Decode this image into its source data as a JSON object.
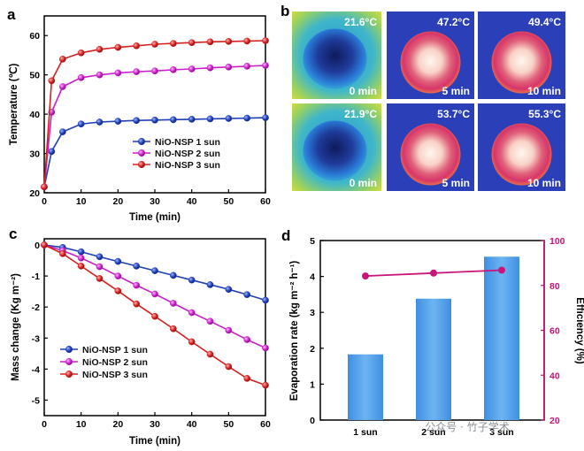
{
  "panel_letters": {
    "a": "a",
    "b": "b",
    "c": "c",
    "d": "d"
  },
  "colors": {
    "sun1": "#1f3fb5",
    "sun2": "#c81fc8",
    "sun3": "#d42020",
    "bar": "#4d9be6",
    "efficiency": "#c8157a",
    "right_axis": "#c8157a"
  },
  "chart_data": [
    {
      "panel": "a",
      "type": "line",
      "xlabel": "Time (min)",
      "ylabel": "Temperature (℃)",
      "xlim": [
        0,
        60
      ],
      "ylim": [
        20,
        65
      ],
      "xticks": [
        0,
        10,
        20,
        30,
        40,
        50,
        60
      ],
      "yticks": [
        20,
        30,
        40,
        50,
        60
      ],
      "series": [
        {
          "name": "NiO-NSP 1 sun",
          "x": [
            0,
            2,
            5,
            10,
            15,
            20,
            25,
            30,
            35,
            40,
            45,
            50,
            55,
            60
          ],
          "y": [
            21.5,
            30.5,
            35.5,
            37.5,
            38.0,
            38.2,
            38.4,
            38.5,
            38.6,
            38.7,
            38.8,
            38.9,
            39.0,
            39.1
          ]
        },
        {
          "name": "NiO-NSP 2 sun",
          "x": [
            0,
            2,
            5,
            10,
            15,
            20,
            25,
            30,
            35,
            40,
            45,
            50,
            55,
            60
          ],
          "y": [
            21.5,
            40.5,
            47.0,
            49.3,
            50.0,
            50.5,
            50.8,
            51.0,
            51.3,
            51.5,
            51.8,
            52.0,
            52.2,
            52.4
          ]
        },
        {
          "name": "NiO-NSP 3 sun",
          "x": [
            0,
            2,
            5,
            10,
            15,
            20,
            25,
            30,
            35,
            40,
            45,
            50,
            55,
            60
          ],
          "y": [
            21.5,
            48.5,
            54.0,
            55.6,
            56.5,
            57.0,
            57.4,
            57.8,
            58.0,
            58.2,
            58.4,
            58.5,
            58.6,
            58.7
          ]
        }
      ],
      "legend": [
        "NiO-NSP 1 sun",
        "NiO-NSP 2 sun",
        "NiO-NSP 3 sun"
      ]
    },
    {
      "panel": "c",
      "type": "line",
      "xlabel": "Time (min)",
      "ylabel": "Mass change (Kg m⁻²)",
      "xlim": [
        0,
        60
      ],
      "ylim": [
        -5.5,
        0.2
      ],
      "xticks": [
        0,
        10,
        20,
        30,
        40,
        50,
        60
      ],
      "yticks": [
        0,
        -1,
        -2,
        -3,
        -4,
        -5
      ],
      "series": [
        {
          "name": "NiO-NSP 1 sun",
          "x": [
            0,
            5,
            10,
            15,
            20,
            25,
            30,
            35,
            40,
            45,
            50,
            55,
            60
          ],
          "y": [
            0,
            -0.08,
            -0.22,
            -0.38,
            -0.53,
            -0.68,
            -0.83,
            -0.98,
            -1.13,
            -1.28,
            -1.43,
            -1.6,
            -1.78
          ]
        },
        {
          "name": "NiO-NSP 2 sun",
          "x": [
            0,
            5,
            10,
            15,
            20,
            25,
            30,
            35,
            40,
            45,
            50,
            55,
            60
          ],
          "y": [
            0,
            -0.18,
            -0.42,
            -0.7,
            -1.0,
            -1.3,
            -1.58,
            -1.88,
            -2.18,
            -2.46,
            -2.75,
            -3.05,
            -3.32
          ]
        },
        {
          "name": "NiO-NSP 3 sun",
          "x": [
            0,
            5,
            10,
            15,
            20,
            25,
            30,
            35,
            40,
            45,
            50,
            55,
            60
          ],
          "y": [
            0,
            -0.28,
            -0.68,
            -1.08,
            -1.48,
            -1.9,
            -2.3,
            -2.7,
            -3.12,
            -3.52,
            -3.92,
            -4.3,
            -4.52
          ]
        }
      ],
      "legend": [
        "NiO-NSP  1 sun",
        "NiO-NSP  2 sun",
        "NiO-NSP  3 sun"
      ]
    },
    {
      "panel": "d",
      "type": "bar",
      "categories": [
        "1 sun",
        "2 sun",
        "3 sun"
      ],
      "values": [
        1.83,
        3.38,
        4.55
      ],
      "ylabel": "Evaporation rate (kg m⁻² h⁻¹)",
      "ylim": [
        0,
        5
      ],
      "yticks": [
        0,
        1,
        2,
        3,
        4,
        5
      ],
      "right_axis": {
        "label": "Efficiency (%)",
        "ylim": [
          20,
          100
        ],
        "yticks": [
          20,
          40,
          60,
          80,
          100
        ],
        "series": {
          "name": "Efficiency",
          "values": [
            84.2,
            85.5,
            86.8
          ]
        }
      }
    }
  ],
  "thermal_images": {
    "panel": "b",
    "rows": [
      [
        {
          "temp": "21.6°C",
          "time": "0 min",
          "state": "cold"
        },
        {
          "temp": "47.2°C",
          "time": "5 min",
          "state": "hot"
        },
        {
          "temp": "49.4°C",
          "time": "10 min",
          "state": "hot"
        }
      ],
      [
        {
          "temp": "21.9°C",
          "time": "0 min",
          "state": "cold"
        },
        {
          "temp": "53.7°C",
          "time": "5 min",
          "state": "hot"
        },
        {
          "temp": "55.3°C",
          "time": "10 min",
          "state": "hot"
        }
      ]
    ]
  },
  "watermark": "公众号 · 竹子学术"
}
